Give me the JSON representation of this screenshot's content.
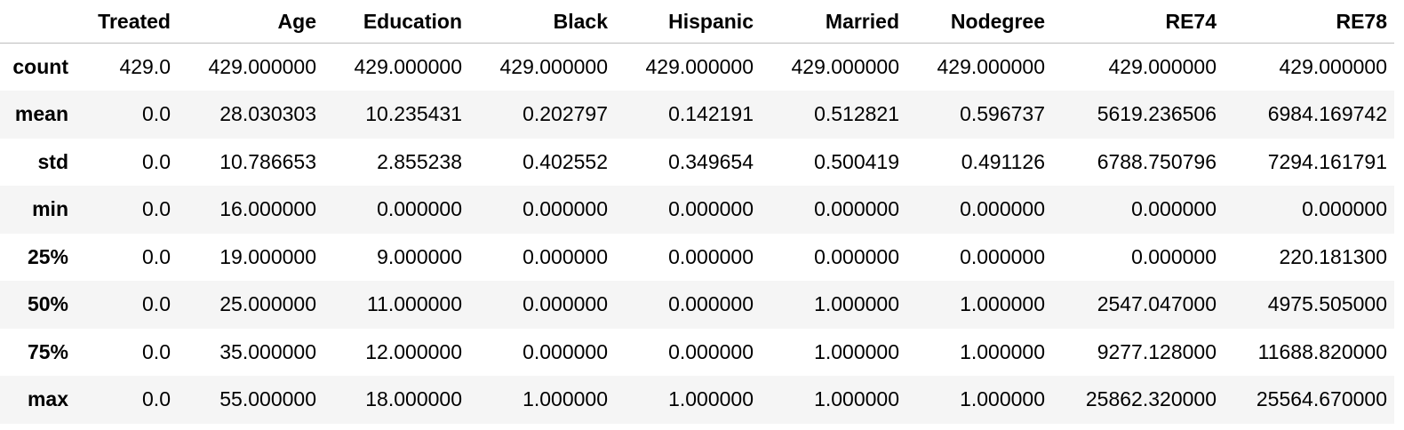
{
  "table": {
    "index_header": "",
    "columns": [
      "Treated",
      "Age",
      "Education",
      "Black",
      "Hispanic",
      "Married",
      "Nodegree",
      "RE74",
      "RE78"
    ],
    "rows": [
      {
        "label": "count",
        "values": [
          "429.0",
          "429.000000",
          "429.000000",
          "429.000000",
          "429.000000",
          "429.000000",
          "429.000000",
          "429.000000",
          "429.000000"
        ]
      },
      {
        "label": "mean",
        "values": [
          "0.0",
          "28.030303",
          "10.235431",
          "0.202797",
          "0.142191",
          "0.512821",
          "0.596737",
          "5619.236506",
          "6984.169742"
        ]
      },
      {
        "label": "std",
        "values": [
          "0.0",
          "10.786653",
          "2.855238",
          "0.402552",
          "0.349654",
          "0.500419",
          "0.491126",
          "6788.750796",
          "7294.161791"
        ]
      },
      {
        "label": "min",
        "values": [
          "0.0",
          "16.000000",
          "0.000000",
          "0.000000",
          "0.000000",
          "0.000000",
          "0.000000",
          "0.000000",
          "0.000000"
        ]
      },
      {
        "label": "25%",
        "values": [
          "0.0",
          "19.000000",
          "9.000000",
          "0.000000",
          "0.000000",
          "0.000000",
          "0.000000",
          "0.000000",
          "220.181300"
        ]
      },
      {
        "label": "50%",
        "values": [
          "0.0",
          "25.000000",
          "11.000000",
          "0.000000",
          "0.000000",
          "1.000000",
          "1.000000",
          "2547.047000",
          "4975.505000"
        ]
      },
      {
        "label": "75%",
        "values": [
          "0.0",
          "35.000000",
          "12.000000",
          "0.000000",
          "0.000000",
          "1.000000",
          "1.000000",
          "9277.128000",
          "11688.820000"
        ]
      },
      {
        "label": "max",
        "values": [
          "0.0",
          "55.000000",
          "18.000000",
          "1.000000",
          "1.000000",
          "1.000000",
          "1.000000",
          "25862.320000",
          "25564.670000"
        ]
      }
    ]
  }
}
